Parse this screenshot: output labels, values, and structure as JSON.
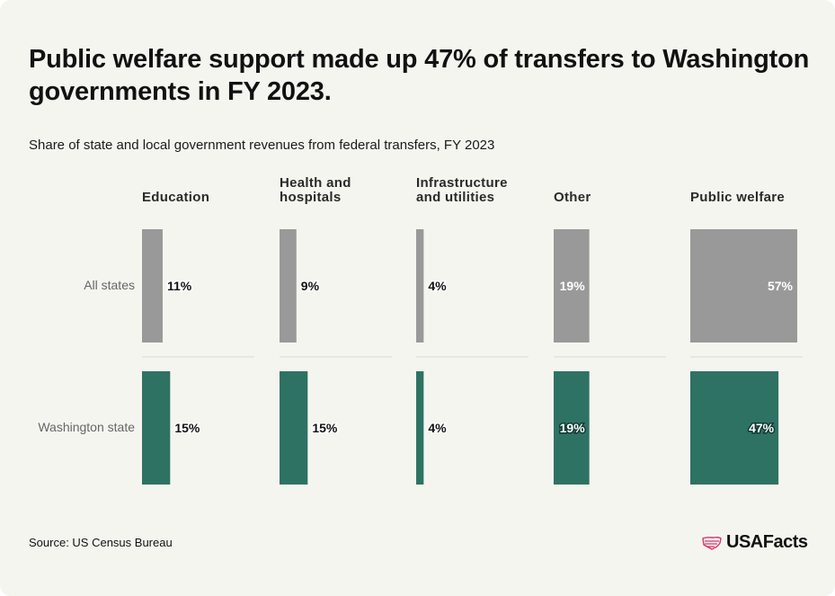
{
  "header": {
    "title": "Public welfare support made up 47% of transfers to Washington governments in FY 2023.",
    "subtitle": "Share of state and local government revenues from federal transfers, FY 2023"
  },
  "chart_data": {
    "type": "bar",
    "categories": [
      "Education",
      "Health and\nhospitals",
      "Infrastructure\nand utilities",
      "Other",
      "Public welfare"
    ],
    "series": [
      {
        "name": "All states",
        "values": [
          11,
          9,
          4,
          19,
          57
        ],
        "color": "#999999",
        "labels": [
          "11%",
          "9%",
          "4%",
          "19%",
          "57%"
        ]
      },
      {
        "name": "Washington state",
        "values": [
          15,
          15,
          4,
          19,
          47
        ],
        "color": "#2e7264",
        "labels": [
          "15%",
          "15%",
          "4%",
          "19%",
          "47%"
        ]
      }
    ],
    "xlim": [
      0,
      57
    ]
  },
  "footer": {
    "source": "Source: US Census Bureau",
    "logo_text": "USAFacts",
    "logo_color": "#d6336c"
  },
  "icons": {
    "logo": "usa-flag-map-icon"
  }
}
